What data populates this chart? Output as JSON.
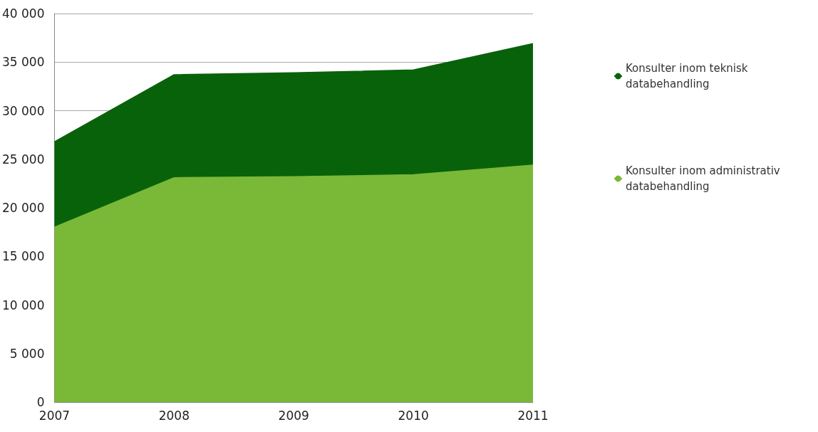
{
  "chart_data": {
    "type": "area",
    "stacked": true,
    "categories": [
      "2007",
      "2008",
      "2009",
      "2010",
      "2011"
    ],
    "series": [
      {
        "name": "Konsulter inom administrativ databehandling",
        "color": "#7ab838",
        "values": [
          18000,
          23100,
          23200,
          23400,
          24400
        ]
      },
      {
        "name": "Konsulter inom teknisk databehandling",
        "color": "#08620a",
        "values": [
          8800,
          10600,
          10700,
          10800,
          12500
        ]
      }
    ],
    "ylim": [
      0,
      40000
    ],
    "yticks": [
      {
        "value": 0,
        "label": "0"
      },
      {
        "value": 5000,
        "label": "5 000"
      },
      {
        "value": 10000,
        "label": "10 000"
      },
      {
        "value": 15000,
        "label": "15 000"
      },
      {
        "value": 20000,
        "label": "20 000"
      },
      {
        "value": 25000,
        "label": "25 000"
      },
      {
        "value": 30000,
        "label": "30 000"
      },
      {
        "value": 35000,
        "label": "35 000"
      },
      {
        "value": 40000,
        "label": "40 000"
      }
    ],
    "grid": "y",
    "legend": "right"
  }
}
